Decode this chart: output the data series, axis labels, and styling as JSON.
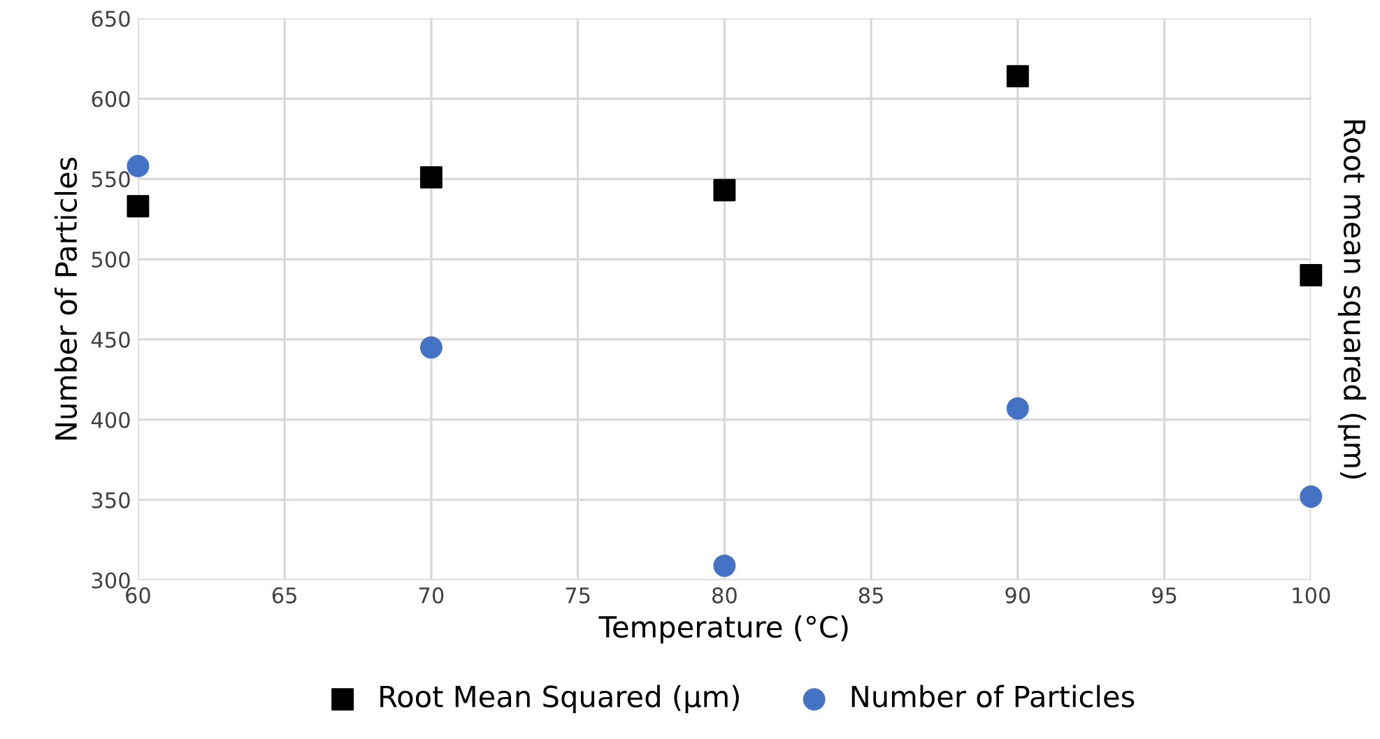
{
  "chart_data": {
    "type": "scatter",
    "xlabel": "Temperature (°C)",
    "ylabel": "Number of Particles",
    "y2label": "Root mean squared (µm)",
    "x": [
      60,
      70,
      80,
      90,
      100
    ],
    "series": [
      {
        "name": "Root Mean Squared (µm)",
        "color": "#000000",
        "marker": "square",
        "values": [
          533,
          551,
          543,
          614,
          490
        ]
      },
      {
        "name": "Number of Particles",
        "color": "#4472c4",
        "marker": "circle",
        "values": [
          558,
          445,
          309,
          407,
          352
        ]
      }
    ],
    "xlim": [
      60,
      100
    ],
    "xticks": [
      60,
      65,
      70,
      75,
      80,
      85,
      90,
      95,
      100
    ],
    "ylim": [
      300,
      650
    ],
    "yticks": [
      300,
      350,
      400,
      450,
      500,
      550,
      600,
      650
    ],
    "grid": true,
    "legend": "bottom"
  }
}
